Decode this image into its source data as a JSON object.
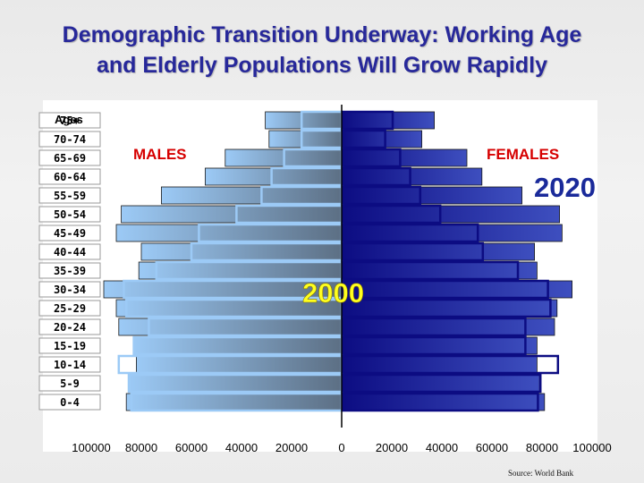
{
  "title": {
    "line1": "Demographic Transition Underway: Working Age",
    "line2": "and Elderly Populations Will Grow Rapidly"
  },
  "source": "Source: World Bank",
  "chart_data": {
    "type": "bar",
    "orientation": "horizontal",
    "subtype": "population-pyramid",
    "ages_heading": "Ages",
    "categories": [
      "75+",
      "70-74",
      "65-69",
      "60-64",
      "55-59",
      "50-54",
      "45-49",
      "40-44",
      "35-39",
      "30-34",
      "25-29",
      "20-24",
      "15-19",
      "10-14",
      "5-9",
      "0-4"
    ],
    "xtick_labels": [
      "100000",
      "80000",
      "60000",
      "40000",
      "20000",
      "0",
      "20000",
      "40000",
      "60000",
      "80000",
      "100000"
    ],
    "x_range": [
      -100000,
      100000
    ],
    "males_label": "MALES",
    "females_label": "FEMALES",
    "year_2020_label": "2020",
    "year_2000_label": "2000",
    "series": [
      {
        "name": "MALES",
        "year": "2020",
        "values": [
          30500,
          29000,
          46500,
          54500,
          72000,
          88000,
          90000,
          80000,
          81000,
          95000,
          90000,
          89000,
          83000,
          82000,
          85000,
          86000
        ]
      },
      {
        "name": "MALES",
        "year": "2000",
        "values": [
          16000,
          16000,
          23000,
          28000,
          32000,
          42000,
          57000,
          60000,
          74000,
          87000,
          86000,
          77000,
          83000,
          89000,
          85000,
          84000
        ]
      },
      {
        "name": "FEMALES",
        "year": "2020",
        "values": [
          37000,
          32000,
          50000,
          56000,
          72000,
          87000,
          88000,
          77000,
          78000,
          92000,
          86000,
          85000,
          78000,
          78000,
          79000,
          81000
        ]
      },
      {
        "name": "FEMALES",
        "year": "2000",
        "values": [
          20000,
          17000,
          23000,
          27000,
          31000,
          39000,
          54000,
          56000,
          70000,
          82000,
          83000,
          73000,
          73000,
          86000,
          79000,
          78000
        ]
      }
    ],
    "colors": {
      "males_light": "#9ccaf6",
      "males_dark": "#5c6f84",
      "females_light": "#3e4fbf",
      "females_dark": "#0c0c82",
      "males_label": "#d60000",
      "females_label": "#d60000",
      "year_2020": "#1a2a9a",
      "year_2000": "#ffff1f",
      "title": "#27289a"
    },
    "grid": false,
    "legend": "none"
  }
}
